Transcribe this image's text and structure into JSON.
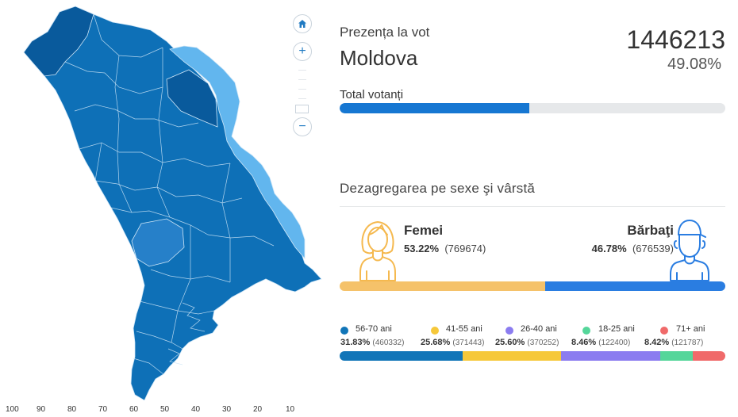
{
  "map": {
    "scale_labels": [
      "100",
      "90",
      "80",
      "70",
      "60",
      "50",
      "40",
      "30",
      "20",
      "10"
    ],
    "colors": {
      "high": "#0e70b7",
      "dark": "#095a9c",
      "mid": "#2680c9",
      "low": "#62b6ee",
      "border": "#cfe6f7"
    }
  },
  "controls": {
    "home_icon": "home-icon",
    "zoom_in": "+",
    "zoom_out": "−"
  },
  "header": {
    "title": "Prezența la vot",
    "region": "Moldova",
    "total_votes": "1446213",
    "total_pct": "49.08%"
  },
  "turnout": {
    "label": "Total votanți",
    "fraction": 0.4908,
    "fill_color": "#1677d2"
  },
  "demographics": {
    "title": "Dezagregarea pe sexe şi vârstă",
    "female": {
      "name": "Femei",
      "pct": "53.22%",
      "count": "(769674)",
      "fraction": 0.5322,
      "color": "#f5c26a"
    },
    "male": {
      "name": "Bărbaţi",
      "pct": "46.78%",
      "count": "(676539)",
      "fraction": 0.4678,
      "color": "#2a7de1"
    }
  },
  "age_groups": [
    {
      "name": "56-70 ani",
      "pct": "31.83%",
      "count": "(460332)",
      "fraction": 0.3183,
      "color": "#1175b8"
    },
    {
      "name": "41-55 ani",
      "pct": "25.68%",
      "count": "(371443)",
      "fraction": 0.2568,
      "color": "#f6c83a"
    },
    {
      "name": "26-40 ani",
      "pct": "25.60%",
      "count": "(370252)",
      "fraction": 0.256,
      "color": "#8b7cf0"
    },
    {
      "name": "18-25 ani",
      "pct": "8.46%",
      "count": "(122400)",
      "fraction": 0.0846,
      "color": "#55d69a"
    },
    {
      "name": "71+ ani",
      "pct": "8.42%",
      "count": "(121787)",
      "fraction": 0.0842,
      "color": "#f06a6a"
    }
  ]
}
